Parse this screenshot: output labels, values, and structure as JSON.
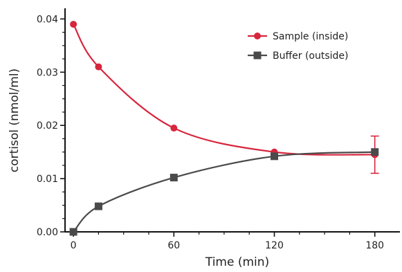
{
  "chart_data": {
    "type": "line",
    "title": "",
    "xlabel": "Time (min)",
    "ylabel": "cortisol (nmol/ml)",
    "xlim": [
      -5,
      195
    ],
    "ylim": [
      0,
      0.042
    ],
    "x_ticks": [
      "0",
      "60",
      "120",
      "180"
    ],
    "x_tick_values": [
      0,
      60,
      120,
      180
    ],
    "y_ticks": [
      "0.00",
      "0.01",
      "0.02",
      "0.03",
      "0.04"
    ],
    "y_tick_values": [
      0,
      0.01,
      0.02,
      0.03,
      0.04
    ],
    "grid": false,
    "legend_position": "top-right",
    "series": [
      {
        "name": "Sample (inside)",
        "marker": "circle",
        "color": "#d7263d",
        "x": [
          0,
          15,
          60,
          120,
          180
        ],
        "y": [
          0.039,
          0.031,
          0.0195,
          0.015,
          0.0145
        ],
        "error": [
          null,
          null,
          null,
          null,
          0.0035
        ]
      },
      {
        "name": "Buffer (outside)",
        "marker": "square",
        "color": "#4a4a4a",
        "x": [
          0,
          15,
          60,
          120,
          180
        ],
        "y": [
          0.0,
          0.0048,
          0.0102,
          0.0142,
          0.015
        ],
        "error": [
          null,
          null,
          null,
          null,
          null
        ]
      }
    ]
  }
}
